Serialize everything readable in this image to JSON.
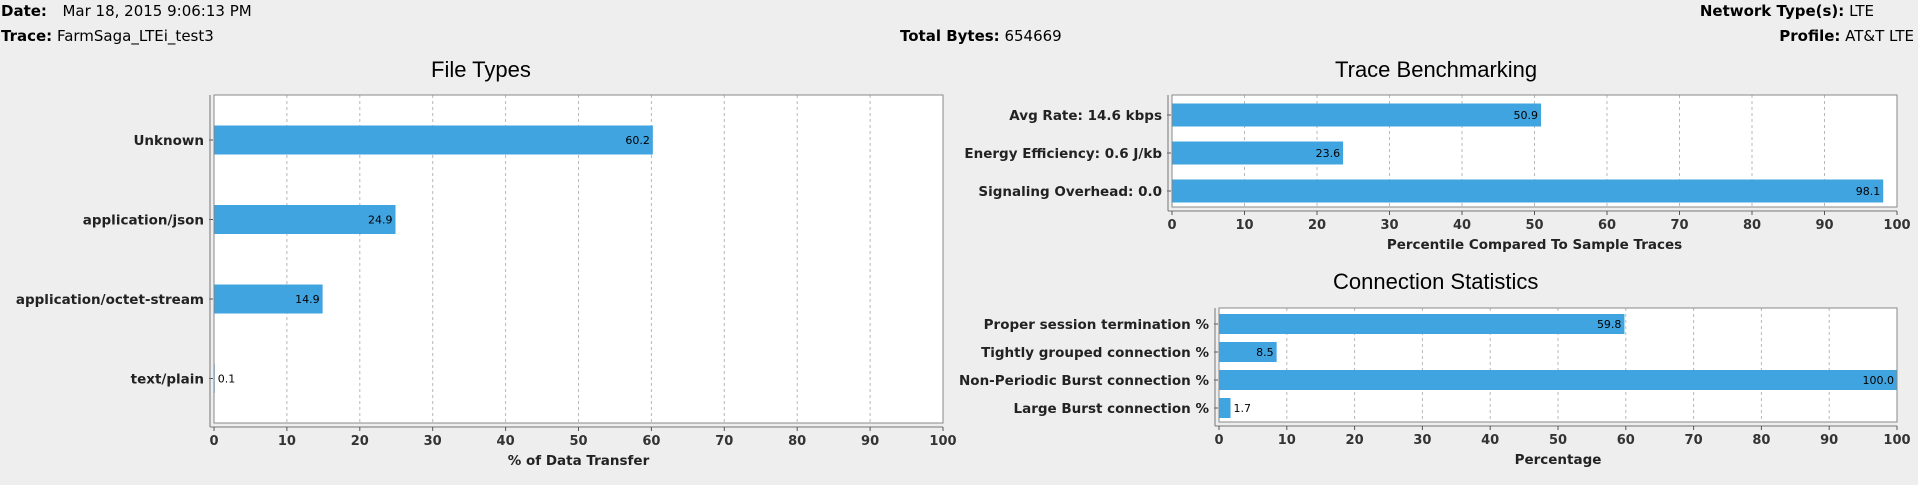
{
  "header": {
    "date_label": "Date:",
    "date_value": "Mar 18, 2015 9:06:13 PM",
    "trace_label": "Trace:",
    "trace_value": "FarmSaga_LTEi_test3",
    "total_bytes_label": "Total Bytes:",
    "total_bytes_value": "654669",
    "network_label": "Network Type(s):",
    "network_value": "LTE",
    "profile_label": "Profile:",
    "profile_value": "AT&T LTE"
  },
  "colors": {
    "bar": "#40a4e0",
    "grid": "#b8b8b8"
  },
  "chart_data": [
    {
      "id": "file-types",
      "type": "bar",
      "orientation": "horizontal",
      "title": "File Types",
      "xlabel": "% of Data Transfer",
      "categories": [
        "Unknown",
        "application/json",
        "application/octet-stream",
        "text/plain"
      ],
      "values": [
        60.2,
        24.9,
        14.9,
        0.1
      ],
      "value_labels": [
        "60.2",
        "24.9",
        "14.9",
        "0.1"
      ],
      "xlim": [
        0,
        100
      ],
      "ticks": [
        "0",
        "10",
        "20",
        "30",
        "40",
        "50",
        "60",
        "70",
        "80",
        "90",
        "100"
      ],
      "grid": true
    },
    {
      "id": "trace-benchmarking",
      "type": "bar",
      "orientation": "horizontal",
      "title": "Trace Benchmarking",
      "xlabel": "Percentile Compared To Sample Traces",
      "categories": [
        "Avg Rate: 14.6 kbps",
        "Energy Efficiency: 0.6 J/kb",
        "Signaling Overhead: 0.0"
      ],
      "values": [
        50.9,
        23.6,
        98.1
      ],
      "value_labels": [
        "50.9",
        "23.6",
        "98.1"
      ],
      "xlim": [
        0,
        100
      ],
      "ticks": [
        "0",
        "10",
        "20",
        "30",
        "40",
        "50",
        "60",
        "70",
        "80",
        "90",
        "100"
      ],
      "grid": true
    },
    {
      "id": "connection-statistics",
      "type": "bar",
      "orientation": "horizontal",
      "title": "Connection Statistics",
      "xlabel": "Percentage",
      "categories": [
        "Proper session termination %",
        "Tightly grouped connection %",
        "Non-Periodic Burst connection %",
        "Large Burst connection %"
      ],
      "values": [
        59.8,
        8.5,
        100.0,
        1.7
      ],
      "value_labels": [
        "59.8",
        "8.5",
        "100.0",
        "1.7"
      ],
      "xlim": [
        0,
        100
      ],
      "ticks": [
        "0",
        "10",
        "20",
        "30",
        "40",
        "50",
        "60",
        "70",
        "80",
        "90",
        "100"
      ],
      "grid": true
    }
  ]
}
